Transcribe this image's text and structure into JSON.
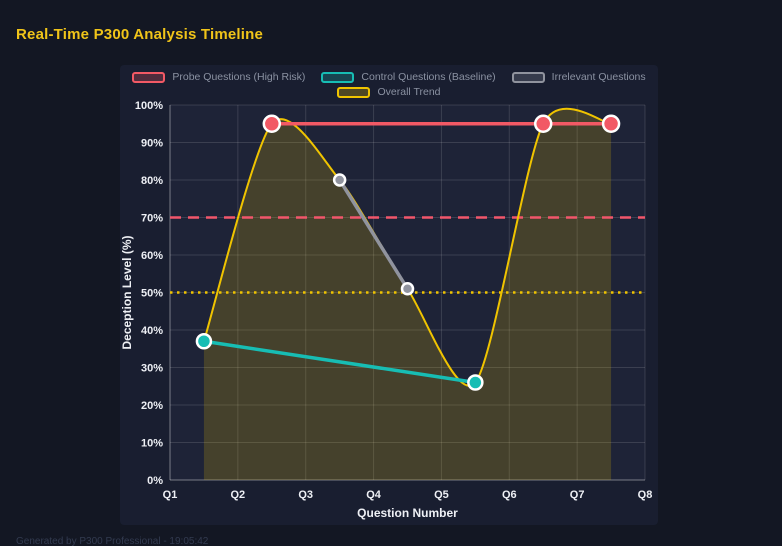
{
  "theme": {
    "background": "#131723",
    "panel": "#191e30",
    "plot_background": "#1e2337",
    "grid": "rgba(255,255,255,0.13)",
    "axis_line": "rgba(255,255,255,0.32)",
    "title_color": "#f0c419",
    "tick_label_color": "#eef0f5",
    "legend_text_color": "#8b92a2",
    "footer_text_color": "#333b50",
    "marker_ring": "#ffffff"
  },
  "footer": {
    "text": "Generated by P300 Professional - 19:05:42"
  },
  "chart_data": {
    "type": "line",
    "title": "Real-Time P300 Analysis Timeline",
    "xlabel": "Question Number",
    "ylabel": "Deception Level (%)",
    "x_ticks": [
      "Q1",
      "Q2",
      "Q3",
      "Q4",
      "Q5",
      "Q6",
      "Q7",
      "Q8"
    ],
    "y_ticks": [
      "0%",
      "10%",
      "20%",
      "30%",
      "40%",
      "50%",
      "60%",
      "70%",
      "80%",
      "90%",
      "100%"
    ],
    "xlim": [
      1,
      8
    ],
    "ylim": [
      0,
      100
    ],
    "grid": true,
    "legend_position": "top",
    "legend_rows": [
      [
        0,
        1,
        2
      ],
      [
        3
      ]
    ],
    "series": [
      {
        "name": "Probe Questions (High Risk)",
        "color": "#f25965",
        "marker_radius": 8,
        "line_width": 3.5,
        "points": [
          [
            2.5,
            95
          ],
          [
            6.5,
            95
          ],
          [
            7.5,
            95
          ]
        ]
      },
      {
        "name": "Control Questions (Baseline)",
        "color": "#17bdb4",
        "marker_radius": 7,
        "line_width": 3.5,
        "points": [
          [
            1.5,
            37
          ],
          [
            5.5,
            26
          ]
        ]
      },
      {
        "name": "Irrelevant Questions",
        "color": "#90939e",
        "marker_radius": 5.5,
        "line_width": 3.5,
        "points": [
          [
            3.5,
            80
          ],
          [
            4.5,
            51
          ]
        ]
      },
      {
        "name": "Overall Trend",
        "color": "#f0c400",
        "marker_radius": 0,
        "line_width": 2,
        "smooth": true,
        "area": true,
        "area_opacity": 0.19,
        "points": [
          [
            1.5,
            37
          ],
          [
            2.5,
            95
          ],
          [
            3.5,
            80
          ],
          [
            4.5,
            51
          ],
          [
            5.5,
            26
          ],
          [
            6.5,
            95
          ],
          [
            7.5,
            95
          ]
        ]
      }
    ],
    "thresholds": [
      {
        "value": 70,
        "color": "#f2566b",
        "style": "dashed"
      },
      {
        "value": 50,
        "color": "#f0c400",
        "style": "dotted"
      }
    ]
  }
}
